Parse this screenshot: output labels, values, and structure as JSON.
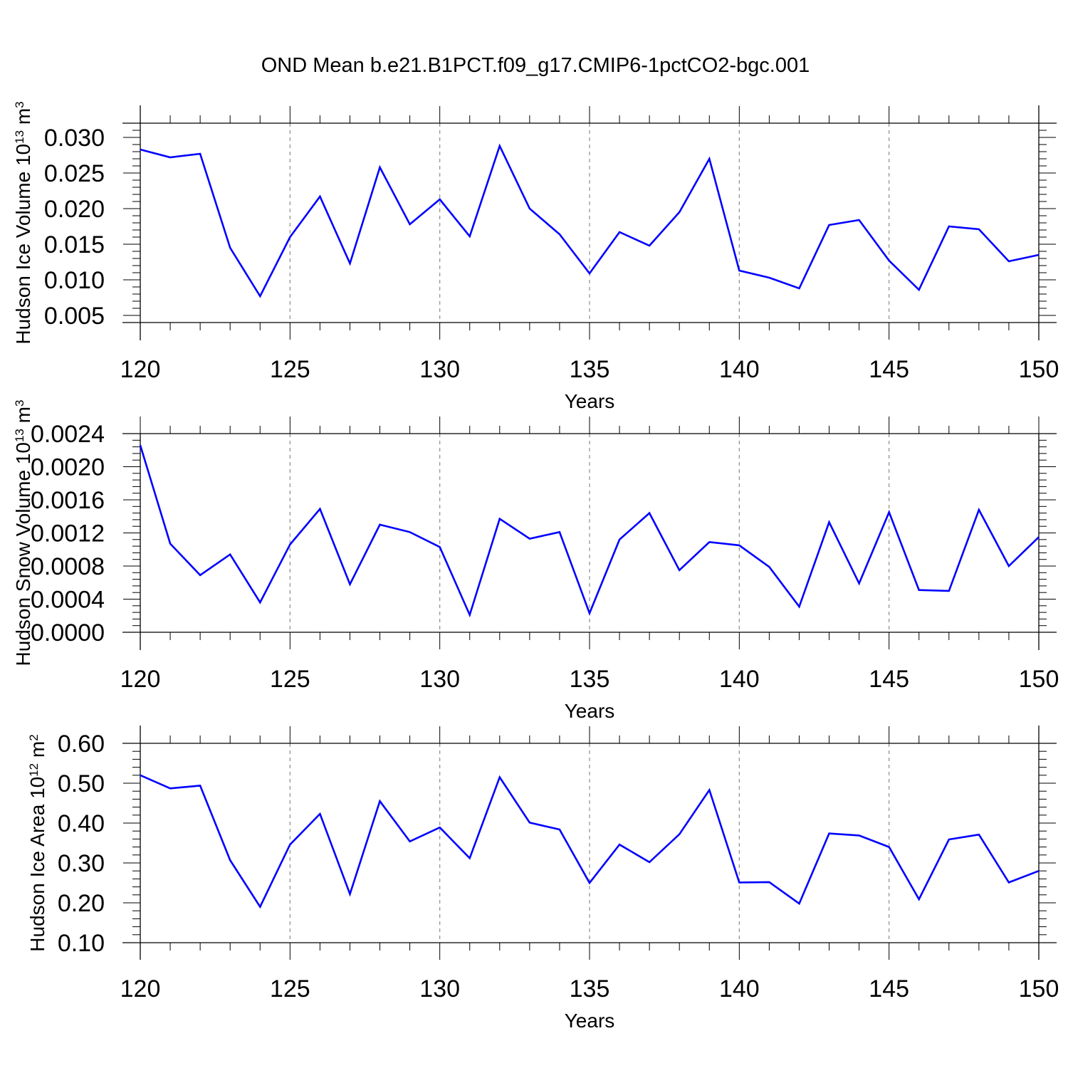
{
  "title": "OND Mean b.e21.B1PCT.f09_g17.CMIP6-1pctCO2-bgc.001",
  "colors": {
    "line": "#0000ff",
    "axis": "#000000",
    "grid": "#8c8c8c"
  },
  "chart_data": [
    {
      "type": "line",
      "title": "OND Mean b.e21.B1PCT.f09_g17.CMIP6-1pctCO2-bgc.001",
      "xlabel": "Years",
      "ylabel": {
        "main": "Hudson Ice Volume 10",
        "exp": "13",
        "unit": " m",
        "unit_exp": "3"
      },
      "xlim": [
        120,
        150
      ],
      "ylim": [
        0.004,
        0.032
      ],
      "xticks": [
        120,
        125,
        130,
        135,
        140,
        145,
        150
      ],
      "xtick_labels": [
        "120",
        "125",
        "130",
        "135",
        "140",
        "145",
        "150"
      ],
      "yticks": [
        0.005,
        0.01,
        0.015,
        0.02,
        0.025,
        0.03
      ],
      "ytick_labels": [
        "0.005",
        "0.010",
        "0.015",
        "0.020",
        "0.025",
        "0.030"
      ],
      "grid": "vertical dashed at major x ticks",
      "series": [
        {
          "name": "Hudson Ice Volume",
          "x": [
            120,
            121,
            122,
            123,
            124,
            125,
            126,
            127,
            128,
            129,
            130,
            131,
            132,
            133,
            134,
            135,
            136,
            137,
            138,
            139,
            140,
            141,
            142,
            143,
            144,
            145,
            146,
            147,
            148,
            149,
            150
          ],
          "values": [
            0.0283,
            0.0272,
            0.0277,
            0.0145,
            0.0077,
            0.016,
            0.0217,
            0.0123,
            0.0258,
            0.0178,
            0.0213,
            0.0161,
            0.0288,
            0.02,
            0.0164,
            0.0109,
            0.0167,
            0.0148,
            0.0195,
            0.027,
            0.0113,
            0.0103,
            0.0088,
            0.0177,
            0.0184,
            0.0127,
            0.0086,
            0.0175,
            0.0171,
            0.0126,
            0.0135
          ]
        }
      ]
    },
    {
      "type": "line",
      "xlabel": "Years",
      "ylabel": {
        "main": "Hudson Snow Volume 10",
        "exp": "13",
        "unit": " m",
        "unit_exp": "3"
      },
      "xlim": [
        120,
        150
      ],
      "ylim": [
        0.0,
        0.0024
      ],
      "xticks": [
        120,
        125,
        130,
        135,
        140,
        145,
        150
      ],
      "xtick_labels": [
        "120",
        "125",
        "130",
        "135",
        "140",
        "145",
        "150"
      ],
      "yticks": [
        0.0,
        0.0004,
        0.0008,
        0.0012,
        0.0016,
        0.002,
        0.0024
      ],
      "ytick_labels": [
        "0.0000",
        "0.0004",
        "0.0008",
        "0.0012",
        "0.0016",
        "0.0020",
        "0.0024"
      ],
      "grid": "vertical dashed at major x ticks",
      "series": [
        {
          "name": "Hudson Snow Volume",
          "x": [
            120,
            121,
            122,
            123,
            124,
            125,
            126,
            127,
            128,
            129,
            130,
            131,
            132,
            133,
            134,
            135,
            136,
            137,
            138,
            139,
            140,
            141,
            142,
            143,
            144,
            145,
            146,
            147,
            148,
            149,
            150
          ],
          "values": [
            0.00226,
            0.00107,
            0.00069,
            0.00094,
            0.00036,
            0.00106,
            0.00149,
            0.00058,
            0.0013,
            0.00121,
            0.00103,
            0.00021,
            0.00137,
            0.00113,
            0.00121,
            0.00023,
            0.00112,
            0.00144,
            0.00075,
            0.00109,
            0.00105,
            0.00079,
            0.00031,
            0.00133,
            0.00059,
            0.00145,
            0.00051,
            0.0005,
            0.00148,
            0.0008,
            0.00115
          ]
        }
      ]
    },
    {
      "type": "line",
      "xlabel": "Years",
      "ylabel": {
        "main": "Hudson Ice Area 10",
        "exp": "12",
        "unit": " m",
        "unit_exp": "2"
      },
      "xlim": [
        120,
        150
      ],
      "ylim": [
        0.1,
        0.6
      ],
      "xticks": [
        120,
        125,
        130,
        135,
        140,
        145,
        150
      ],
      "xtick_labels": [
        "120",
        "125",
        "130",
        "135",
        "140",
        "145",
        "150"
      ],
      "yticks": [
        0.1,
        0.2,
        0.3,
        0.4,
        0.5,
        0.6
      ],
      "ytick_labels": [
        "0.10",
        "0.20",
        "0.30",
        "0.40",
        "0.50",
        "0.60"
      ],
      "grid": "vertical dashed at major x ticks",
      "series": [
        {
          "name": "Hudson Ice Area",
          "x": [
            120,
            121,
            122,
            123,
            124,
            125,
            126,
            127,
            128,
            129,
            130,
            131,
            132,
            133,
            134,
            135,
            136,
            137,
            138,
            139,
            140,
            141,
            142,
            143,
            144,
            145,
            146,
            147,
            148,
            149,
            150
          ],
          "values": [
            0.52,
            0.487,
            0.494,
            0.307,
            0.19,
            0.346,
            0.423,
            0.222,
            0.455,
            0.354,
            0.389,
            0.312,
            0.515,
            0.401,
            0.384,
            0.25,
            0.346,
            0.302,
            0.372,
            0.483,
            0.251,
            0.252,
            0.198,
            0.374,
            0.369,
            0.34,
            0.209,
            0.359,
            0.371,
            0.251,
            0.28
          ]
        }
      ]
    }
  ]
}
